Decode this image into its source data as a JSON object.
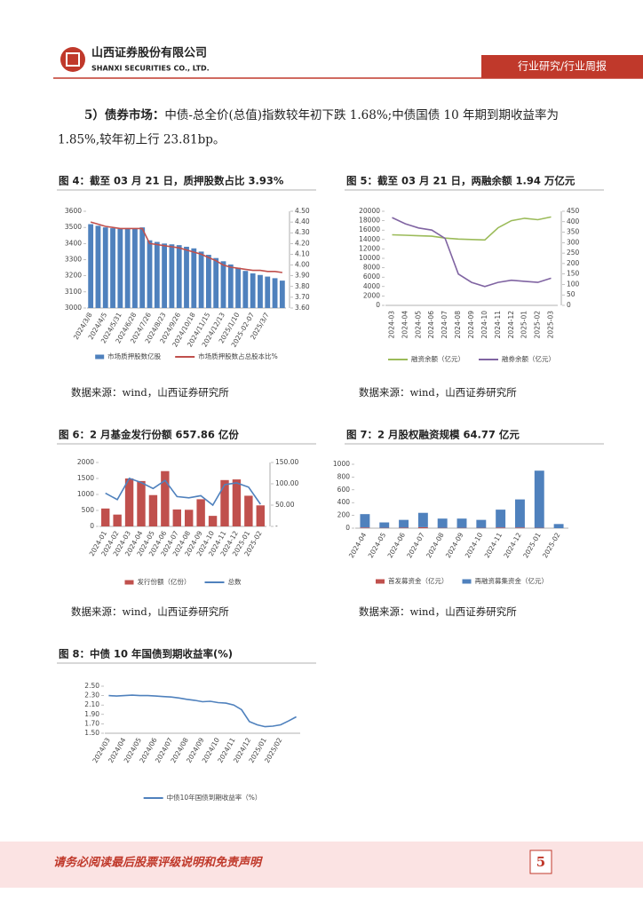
{
  "header": {
    "company": "山西证券股份有限公司",
    "company_en": "SHANXI SECURITIES CO., LTD.",
    "section": "行业研究/行业周报"
  },
  "paragraph": {
    "lead": "5）债券市场：",
    "text": [
      "中债-总全价(总值)指数较年初下跌 1.68%;中债国债 10 年期到期收益率为",
      "1.85%,较年初上行 23.81bp。"
    ]
  },
  "chart_data": [
    {
      "type": "combo",
      "title": "图 4：截至 03 月 21 日，质押股数占比 3.93%",
      "source": "数据来源：wind，山西证券研究所",
      "categories": [
        "2024/3/8",
        null,
        "2024/4/5",
        null,
        "2024/5/31",
        null,
        "2024/6/28",
        null,
        "2024/7/26",
        null,
        "2024/8/23",
        null,
        "2024/9/26",
        null,
        "2024/10/18",
        null,
        "2024/11/15",
        null,
        "2024/12/13",
        null,
        "2025/1/10",
        null,
        "2025-02-07",
        null,
        "2025/3/7",
        null,
        null
      ],
      "series": [
        {
          "name": "市场质押股数亿股",
          "color": "#4f81bd",
          "kind": "bar",
          "values": [
            3520,
            3510,
            3500,
            3495,
            3490,
            3490,
            3490,
            3500,
            3420,
            3410,
            3400,
            3395,
            3390,
            3380,
            3370,
            3350,
            3330,
            3310,
            3290,
            3270,
            3250,
            3230,
            3215,
            3205,
            3195,
            3185,
            3170
          ]
        },
        {
          "name": "市场质押股数占总股本比%",
          "color": "#c0504d",
          "kind": "line",
          "axis": "y2",
          "values": [
            4.4,
            4.38,
            4.36,
            4.35,
            4.34,
            4.34,
            4.34,
            4.34,
            4.2,
            4.19,
            4.18,
            4.17,
            4.16,
            4.14,
            4.12,
            4.1,
            4.07,
            4.04,
            4.0,
            3.98,
            3.97,
            3.96,
            3.95,
            3.95,
            3.94,
            3.94,
            3.93
          ]
        }
      ],
      "ylim": [
        3000,
        3600
      ],
      "yticks": [
        3000,
        3100,
        3200,
        3300,
        3400,
        3500,
        3600
      ],
      "y2lim": [
        3.6,
        4.5
      ],
      "y2ticks": [
        {
          "value": 3.6,
          "label": "3.60"
        },
        {
          "value": 3.7,
          "label": "3.70"
        },
        {
          "value": 3.8,
          "label": "3.80"
        },
        {
          "value": 3.9,
          "label": "3.90"
        },
        {
          "value": 4.0,
          "label": "4.00"
        },
        {
          "value": 4.1,
          "label": "4.10"
        },
        {
          "value": 4.2,
          "label": "4.20"
        },
        {
          "value": 4.3,
          "label": "4.30"
        },
        {
          "value": 4.4,
          "label": "4.40"
        },
        {
          "value": 4.5,
          "label": "4.50"
        }
      ],
      "grid": false
    },
    {
      "type": "line",
      "title": "图 5：截至 03 月 21 日，两融余额 1.94 万亿元",
      "source": "数据来源：wind，山西证券研究所",
      "categories": [
        "2024-03",
        "2024-04",
        "2024-05",
        "2024-06",
        "2024-07",
        "2024-08",
        "2024-09",
        "2024-10",
        "2024-11",
        "2024-12",
        "2025-01",
        "2025-02",
        "2025-03"
      ],
      "series": [
        {
          "name": "融资余额（亿元）",
          "color": "#9bbb59",
          "kind": "line",
          "values": [
            15000,
            14900,
            14800,
            14700,
            14300,
            14100,
            14000,
            13900,
            16500,
            18000,
            18500,
            18200,
            18800
          ]
        },
        {
          "name": "融券余额（亿元）",
          "color": "#8064a2",
          "kind": "line",
          "axis": "y2",
          "values": [
            420,
            390,
            370,
            360,
            320,
            150,
            110,
            90,
            110,
            120,
            115,
            110,
            130
          ]
        }
      ],
      "ylim": [
        0,
        20000
      ],
      "yticks": [
        0,
        2000,
        4000,
        6000,
        8000,
        10000,
        12000,
        14000,
        16000,
        18000,
        20000
      ],
      "y2lim": [
        0,
        450
      ],
      "y2ticks": [
        0,
        50,
        100,
        150,
        200,
        250,
        300,
        350,
        400,
        450
      ],
      "grid": false
    },
    {
      "type": "combo",
      "title": "图 6：2 月基金发行份额 657.86 亿份",
      "source": "数据来源：wind，山西证券研究所",
      "categories": [
        "2024-01",
        "2024-02",
        "2024-03",
        "2024-04",
        "2024-05",
        "2024-06",
        "2024-07",
        "2024-08",
        "2024-09",
        "2024-10",
        "2024-11",
        "2024-12",
        "2025-01",
        "2025-02"
      ],
      "series": [
        {
          "name": "发行份额（亿份）",
          "color": "#c0504d",
          "kind": "bar",
          "values": [
            560,
            370,
            1500,
            1420,
            980,
            1730,
            530,
            520,
            850,
            330,
            1450,
            1470,
            960,
            658
          ]
        },
        {
          "name": "总数",
          "color": "#4f81bd",
          "kind": "line",
          "axis": "y2",
          "values": [
            78,
            63,
            113,
            103,
            89,
            108,
            70,
            67,
            72,
            50,
            98,
            102,
            92,
            52
          ]
        }
      ],
      "ylim": [
        0,
        2000
      ],
      "yticks": [
        0,
        500,
        1000,
        1500,
        2000
      ],
      "y2lim": [
        0,
        150
      ],
      "y2ticks": [
        {
          "value": 0,
          "label": "-"
        },
        {
          "value": 50,
          "label": "50.00"
        },
        {
          "value": 100,
          "label": "100.00"
        },
        {
          "value": 150,
          "label": "150.00"
        }
      ],
      "grid": false
    },
    {
      "type": "stacked_bar",
      "title": "图 7：2 月股权融资规模 64.77 亿元",
      "source": "数据来源：wind，山西证券研究所",
      "categories": [
        "2024-04",
        "2024-05",
        "2024-06",
        "2024-07",
        "2024-08",
        "2024-09",
        "2024-10",
        "2024-11",
        "2024-12",
        "2025-01",
        "2025-02"
      ],
      "series": [
        {
          "name": "首发募资金（亿元）",
          "color": "#c0504d",
          "kind": "bar",
          "values": [
            10,
            5,
            8,
            15,
            5,
            5,
            5,
            10,
            10,
            5,
            0
          ]
        },
        {
          "name": "再融资募集资金（亿元）",
          "color": "#4f81bd",
          "kind": "bar",
          "values": [
            210,
            85,
            122,
            225,
            145,
            145,
            125,
            280,
            440,
            895,
            65
          ]
        }
      ],
      "ylim": [
        0,
        1000
      ],
      "yticks": [
        0,
        200,
        400,
        600,
        800,
        1000
      ],
      "grid": false
    },
    {
      "type": "line",
      "title": "图 8：中债 10 年国债到期收益率(%)",
      "categories": [
        "2024/03",
        null,
        "2024/04",
        null,
        "2024/05",
        null,
        "2024/06",
        null,
        "2024/07",
        null,
        "2024/08",
        null,
        "2024/09",
        null,
        "2024/10",
        null,
        "2024/11",
        null,
        "2024/12",
        null,
        "2025/01",
        null,
        "2025/02",
        null,
        null
      ],
      "series": [
        {
          "name": "中债10年国债到期收益率（%）",
          "color": "#4f81bd",
          "kind": "line",
          "values": [
            2.3,
            2.29,
            2.3,
            2.31,
            2.3,
            2.3,
            2.29,
            2.28,
            2.27,
            2.25,
            2.22,
            2.2,
            2.17,
            2.18,
            2.15,
            2.14,
            2.1,
            2.0,
            1.75,
            1.68,
            1.64,
            1.65,
            1.68,
            1.76,
            1.85
          ]
        }
      ],
      "ylim": [
        1.5,
        2.5
      ],
      "yticks": [
        {
          "value": 1.5,
          "label": "1.50"
        },
        {
          "value": 1.7,
          "label": "1.70"
        },
        {
          "value": 1.9,
          "label": "1.90"
        },
        {
          "value": 2.1,
          "label": "2.10"
        },
        {
          "value": 2.3,
          "label": "2.30"
        },
        {
          "value": 2.5,
          "label": "2.50"
        }
      ],
      "grid": false
    }
  ],
  "footer": {
    "disclaimer": "请务必阅读最后股票评级说明和免责声明",
    "page": "5"
  }
}
